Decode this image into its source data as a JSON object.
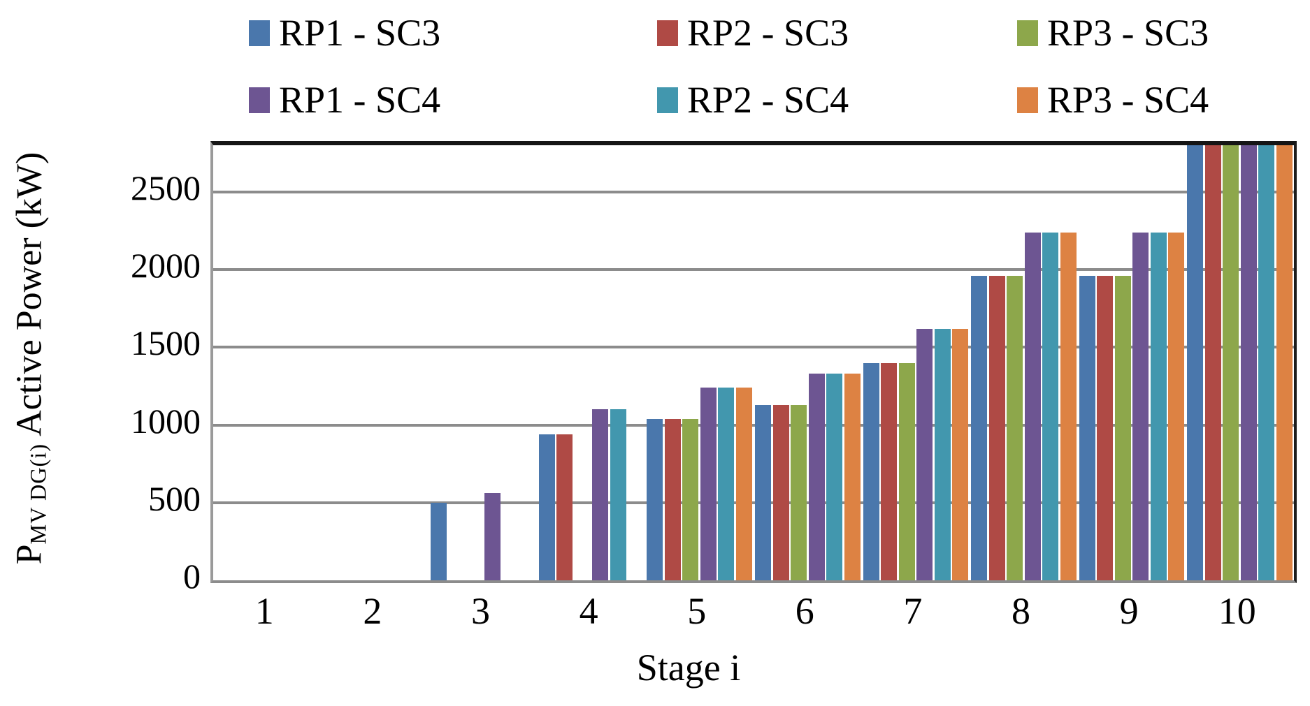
{
  "chart_data": {
    "type": "bar",
    "title": "",
    "xlabel": "Stage i",
    "ylabel_prefix": "P",
    "ylabel_subscript": "MV DG(i)",
    "ylabel_suffix": " Active Power (kW)",
    "categories": [
      "1",
      "2",
      "3",
      "4",
      "5",
      "6",
      "7",
      "8",
      "9",
      "10"
    ],
    "y_ticks": [
      0,
      500,
      1000,
      1500,
      2000,
      2500
    ],
    "ylim": [
      0,
      2800
    ],
    "grid": true,
    "legend_position": "top",
    "series": [
      {
        "name": "RP1 - SC3",
        "color": "#4a77ac",
        "values": [
          0,
          0,
          500,
          940,
          1040,
          1130,
          1400,
          1960,
          1960,
          2800
        ]
      },
      {
        "name": "RP2 - SC3",
        "color": "#af4a45",
        "values": [
          0,
          0,
          0,
          940,
          1040,
          1130,
          1400,
          1960,
          1960,
          2800
        ]
      },
      {
        "name": "RP3 - SC3",
        "color": "#8da74b",
        "values": [
          0,
          0,
          0,
          0,
          1040,
          1130,
          1400,
          1960,
          1960,
          2800
        ]
      },
      {
        "name": "RP1 - SC4",
        "color": "#6d5592",
        "values": [
          0,
          0,
          560,
          1100,
          1240,
          1330,
          1620,
          2240,
          2240,
          2800
        ]
      },
      {
        "name": "RP2 - SC4",
        "color": "#4297ae",
        "values": [
          0,
          0,
          0,
          1100,
          1240,
          1330,
          1620,
          2240,
          2240,
          2800
        ]
      },
      {
        "name": "RP3 - SC4",
        "color": "#dd8243",
        "values": [
          0,
          0,
          0,
          0,
          1240,
          1330,
          1620,
          2240,
          2240,
          2800
        ]
      }
    ],
    "colors": {
      "gridline": "#8c8c8c",
      "plot_border_top": "#151515",
      "plot_border_side": "#9a9a9a"
    }
  }
}
